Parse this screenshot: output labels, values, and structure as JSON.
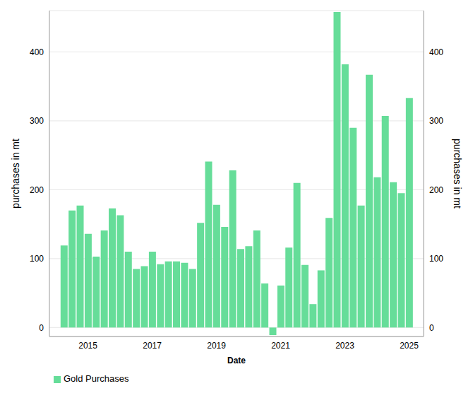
{
  "chart_data": {
    "type": "bar",
    "x_label": "Date",
    "y_label": "purchases in mt",
    "x": [
      2014.25,
      2014.5,
      2014.75,
      2015,
      2015.25,
      2015.5,
      2015.75,
      2016,
      2016.25,
      2016.5,
      2016.75,
      2017,
      2017.25,
      2017.5,
      2017.75,
      2018,
      2018.25,
      2018.5,
      2018.75,
      2019,
      2019.25,
      2019.5,
      2019.75,
      2020,
      2020.25,
      2020.5,
      2020.75,
      2021,
      2021.25,
      2021.5,
      2021.75,
      2022,
      2022.25,
      2022.5,
      2022.75,
      2023,
      2023.25,
      2023.5,
      2023.75,
      2024,
      2024.25,
      2024.5,
      2024.75,
      2025
    ],
    "series": [
      {
        "name": "Gold Purchases",
        "color": "#66dd99",
        "values": [
          119,
          170,
          177,
          136,
          103,
          141,
          173,
          163,
          110,
          85,
          89,
          110,
          92,
          96,
          96,
          94,
          85,
          152,
          241,
          178,
          146,
          228,
          114,
          118,
          141,
          64,
          -11,
          61,
          116,
          210,
          91,
          34,
          83,
          159,
          458,
          382,
          290,
          177,
          367,
          218,
          307,
          211,
          195,
          333
        ]
      }
    ],
    "xlim": [
      2013.8,
      2025.45
    ],
    "xticks": [
      2015,
      2017,
      2019,
      2021,
      2023,
      2025
    ],
    "ylim": [
      -13,
      460
    ],
    "yticks": [
      0,
      100,
      200,
      300,
      400
    ],
    "grid": true,
    "legend": "bottom-left"
  }
}
